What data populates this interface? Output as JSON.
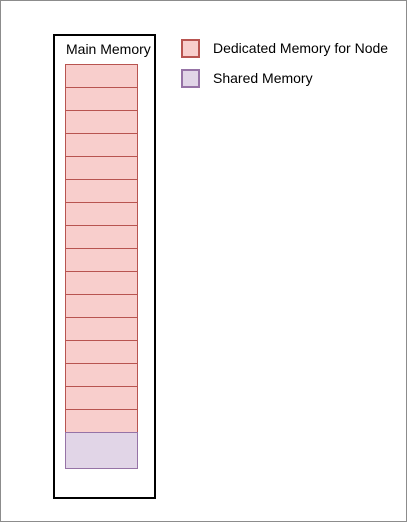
{
  "diagram": {
    "main_memory": {
      "title": "Main Memory",
      "dedicated_block_count": 16,
      "shared_block_count": 1
    },
    "legend": [
      {
        "key": "dedicated",
        "label": "Dedicated Memory for Node",
        "fill": "#f8cecc",
        "stroke": "#b85450"
      },
      {
        "key": "shared",
        "label": "Shared Memory",
        "fill": "#e1d5e7",
        "stroke": "#9673a6"
      }
    ]
  }
}
